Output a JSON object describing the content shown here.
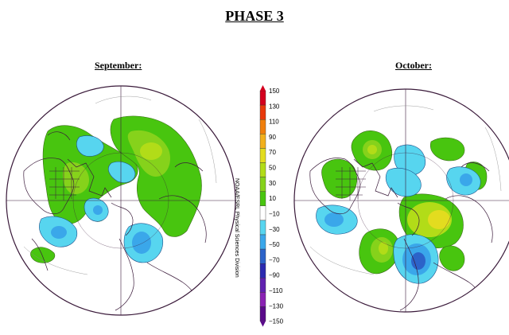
{
  "title": "PHASE 3",
  "panels": [
    {
      "label": "September:"
    },
    {
      "label": "October:"
    }
  ],
  "legend": {
    "ticks": [
      "150",
      "130",
      "110",
      "90",
      "70",
      "50",
      "30",
      "10",
      "−10",
      "−30",
      "−50",
      "−70",
      "−90",
      "−110",
      "−130",
      "−150"
    ],
    "colors": [
      "#d4001e",
      "#e8390b",
      "#f07f0c",
      "#f2b01c",
      "#e3dc1f",
      "#b2dc18",
      "#86d21b",
      "#48c50f",
      "#ffffff",
      "#57d5ef",
      "#3aa7ea",
      "#2c63c9",
      "#2b2ab0",
      "#6021b0",
      "#8a22b3",
      "#5a0a8a"
    ]
  },
  "credit": "NOAA/ESRL Physical Sciences Division"
}
